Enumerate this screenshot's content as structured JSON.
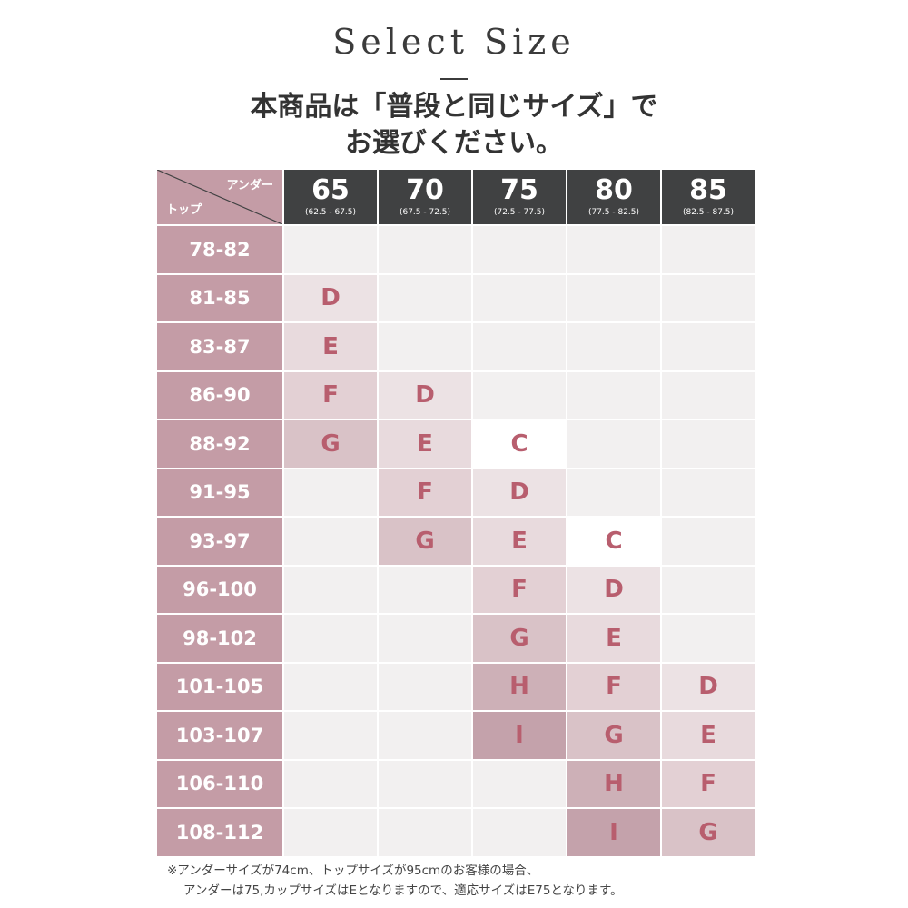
{
  "title": "Select Size",
  "subtitle": [
    "本商品は「普段と同じサイズ」で",
    "お選びください。"
  ],
  "corner": {
    "under_label": "アンダー",
    "top_label": "トップ"
  },
  "columns": [
    {
      "size": "65",
      "range": "(62.5 - 67.5)"
    },
    {
      "size": "70",
      "range": "(67.5 - 72.5)"
    },
    {
      "size": "75",
      "range": "(72.5 - 77.5)"
    },
    {
      "size": "80",
      "range": "(77.5 - 82.5)"
    },
    {
      "size": "85",
      "range": "(82.5 - 87.5)"
    }
  ],
  "rows": [
    {
      "label": "78-82",
      "cups": [
        "",
        "",
        "",
        "",
        ""
      ]
    },
    {
      "label": "81-85",
      "cups": [
        "D",
        "",
        "",
        "",
        ""
      ]
    },
    {
      "label": "83-87",
      "cups": [
        "E",
        "",
        "",
        "",
        ""
      ]
    },
    {
      "label": "86-90",
      "cups": [
        "F",
        "D",
        "",
        "",
        ""
      ]
    },
    {
      "label": "88-92",
      "cups": [
        "G",
        "E",
        "C",
        "",
        ""
      ]
    },
    {
      "label": "91-95",
      "cups": [
        "",
        "F",
        "D",
        "",
        ""
      ]
    },
    {
      "label": "93-97",
      "cups": [
        "",
        "G",
        "E",
        "C",
        ""
      ]
    },
    {
      "label": "96-100",
      "cups": [
        "",
        "",
        "F",
        "D",
        ""
      ]
    },
    {
      "label": "98-102",
      "cups": [
        "",
        "",
        "G",
        "E",
        ""
      ]
    },
    {
      "label": "101-105",
      "cups": [
        "",
        "",
        "H",
        "F",
        "D"
      ]
    },
    {
      "label": "103-107",
      "cups": [
        "",
        "",
        "I",
        "G",
        "E"
      ]
    },
    {
      "label": "106-110",
      "cups": [
        "",
        "",
        "",
        "H",
        "F"
      ]
    },
    {
      "label": "108-112",
      "cups": [
        "",
        "",
        "",
        "I",
        "G"
      ]
    }
  ],
  "cup_colors": {
    "C": "#ffffff",
    "D": "#ece2e4",
    "E": "#e8dadd",
    "F": "#e3d0d4",
    "G": "#d9c2c7",
    "H": "#cdb0b7",
    "I": "#c4a2ab"
  },
  "colors": {
    "row_header": "#c49ca6",
    "column_header": "#404142",
    "empty_cell": "#f2f0f0",
    "cup_text": "#b85e6e"
  },
  "footnote": [
    "※アンダーサイズが74cm、トップサイズが95cmのお客様の場合、",
    "アンダーは75,カップサイズはEとなりますので、適応サイズはE75となります。"
  ]
}
